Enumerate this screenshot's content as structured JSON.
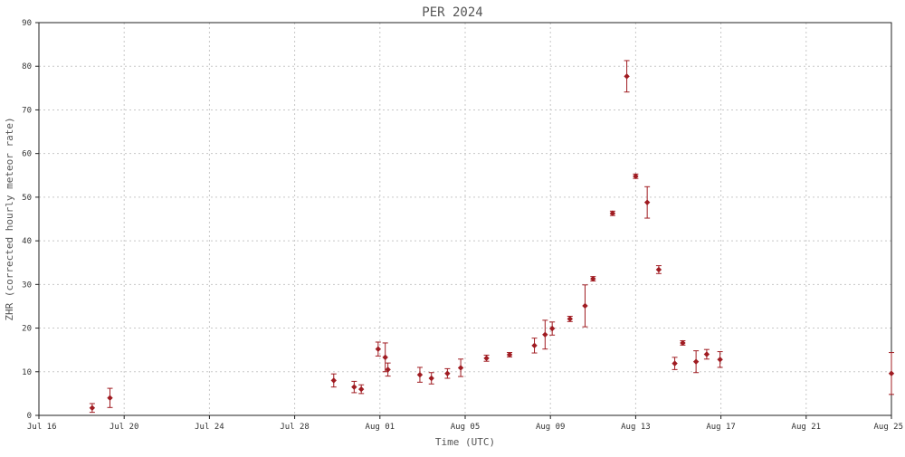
{
  "chart_data": {
    "type": "scatter",
    "title": "PER 2024",
    "xlabel": "Time (UTC)",
    "ylabel": "ZHR (corrected hourly meteor rate)",
    "x_ticks": [
      "Jul 16",
      "Jul 20",
      "Jul 24",
      "Jul 28",
      "Aug 01",
      "Aug 05",
      "Aug 09",
      "Aug 13",
      "Aug 17",
      "Aug 21",
      "Aug 25"
    ],
    "y_ticks": [
      "0",
      "10",
      "20",
      "30",
      "40",
      "50",
      "60",
      "70",
      "80",
      "90"
    ],
    "xlim": [
      "2024-07-16",
      "2024-08-25"
    ],
    "ylim": [
      0,
      90
    ],
    "grid": true,
    "marker_color": "#a01c22",
    "grid_color": "#c8c8c8",
    "points": [
      {
        "x": "2024-07-18 12:00",
        "y": 1.7,
        "err": 1.0
      },
      {
        "x": "2024-07-19 08:00",
        "y": 4.0,
        "err": 2.2
      },
      {
        "x": "2024-07-29 20:00",
        "y": 8.0,
        "err": 1.5
      },
      {
        "x": "2024-07-30 19:00",
        "y": 6.5,
        "err": 1.3
      },
      {
        "x": "2024-07-31 03:00",
        "y": 6.0,
        "err": 1.0
      },
      {
        "x": "2024-07-31 22:00",
        "y": 15.2,
        "err": 1.6
      },
      {
        "x": "2024-08-01 09:00",
        "y": 10.5,
        "err": 1.5
      },
      {
        "x": "2024-08-01 06:00",
        "y": 13.3,
        "err": 3.3
      },
      {
        "x": "2024-08-02 21:00",
        "y": 9.3,
        "err": 1.7
      },
      {
        "x": "2024-08-03 10:00",
        "y": 8.5,
        "err": 1.3
      },
      {
        "x": "2024-08-04 04:00",
        "y": 9.6,
        "err": 1.1
      },
      {
        "x": "2024-08-04 19:00",
        "y": 10.9,
        "err": 2.0
      },
      {
        "x": "2024-08-06 00:00",
        "y": 13.1,
        "err": 0.7
      },
      {
        "x": "2024-08-07 02:00",
        "y": 13.9,
        "err": 0.5
      },
      {
        "x": "2024-08-08 06:00",
        "y": 16.0,
        "err": 1.7
      },
      {
        "x": "2024-08-08 18:00",
        "y": 18.5,
        "err": 3.3
      },
      {
        "x": "2024-08-09 02:00",
        "y": 19.9,
        "err": 1.5
      },
      {
        "x": "2024-08-09 22:00",
        "y": 22.1,
        "err": 0.6
      },
      {
        "x": "2024-08-10 15:00",
        "y": 25.1,
        "err": 4.8
      },
      {
        "x": "2024-08-11 00:00",
        "y": 31.3,
        "err": 0.5
      },
      {
        "x": "2024-08-11 22:00",
        "y": 46.3,
        "err": 0.5
      },
      {
        "x": "2024-08-12 14:00",
        "y": 77.7,
        "err": 3.6
      },
      {
        "x": "2024-08-13 00:00",
        "y": 54.8,
        "err": 0.5
      },
      {
        "x": "2024-08-13 13:00",
        "y": 48.8,
        "err": 3.6
      },
      {
        "x": "2024-08-14 02:00",
        "y": 33.4,
        "err": 0.9
      },
      {
        "x": "2024-08-14 20:00",
        "y": 11.9,
        "err": 1.4
      },
      {
        "x": "2024-08-15 05:00",
        "y": 16.6,
        "err": 0.5
      },
      {
        "x": "2024-08-15 20:00",
        "y": 12.3,
        "err": 2.5
      },
      {
        "x": "2024-08-16 08:00",
        "y": 14.0,
        "err": 1.1
      },
      {
        "x": "2024-08-16 23:00",
        "y": 12.8,
        "err": 1.8
      },
      {
        "x": "2024-08-25 00:00",
        "y": 9.6,
        "err": 4.8
      }
    ]
  }
}
